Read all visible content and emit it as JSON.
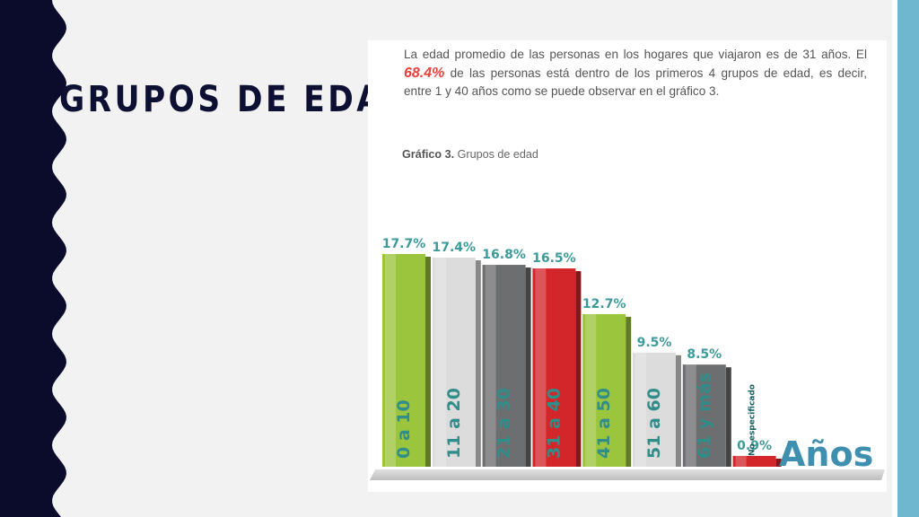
{
  "slide": {
    "title": "GRUPOS DE EDAD"
  },
  "intro": {
    "before": "La edad promedio de las personas en los hogares que viajaron es de 31 años. El ",
    "highlight": "68.4%",
    "after": " de las personas está dentro de los primeros 4 grupos de edad, es decir, entre 1 y 40 años como se puede observar en el gráfico 3."
  },
  "caption": {
    "label": "Gráfico 3.",
    "text": " Grupos de edad"
  },
  "chart_data": {
    "type": "bar",
    "categories": [
      "0 a 10",
      "11 a 20",
      "21 a 30",
      "31 a 40",
      "41 a 50",
      "51 a 60",
      "61 y más",
      "No especificado"
    ],
    "values": [
      17.7,
      17.4,
      16.8,
      16.5,
      12.7,
      9.5,
      8.5,
      0.9
    ],
    "value_labels": [
      "17.7%",
      "17.4%",
      "16.8%",
      "16.5%",
      "12.7%",
      "9.5%",
      "8.5%",
      "0.9%"
    ],
    "xlabel": "Años",
    "ylabel": "",
    "ylim": [
      0,
      17.7
    ],
    "grid": false,
    "colors": [
      "#9bc53d",
      "#dcdcdc",
      "#6d6e70",
      "#d3262a",
      "#9bc53d",
      "#dcdcdc",
      "#6d6e70",
      "#d3262a"
    ]
  },
  "colors": {
    "navy": "#0e1033",
    "accent_blue": "#6fb7cf",
    "teal": "#3d9a9b",
    "highlight_red": "#e8413b"
  }
}
